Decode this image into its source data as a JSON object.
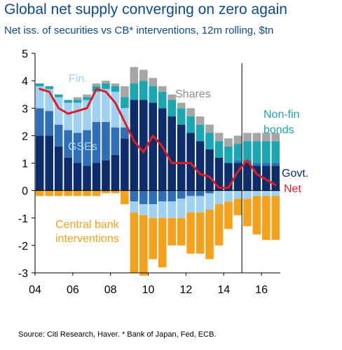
{
  "header": {
    "title": "Global net supply converging on zero again",
    "subtitle": "Net iss. of securities vs CB* interventions, 12m rolling, $tn"
  },
  "footer": {
    "source": "Source: Citi Research, Haver. * Bank of Japan, Fed, ECB."
  },
  "colors": {
    "govt": "#0c2c6b",
    "gses": "#2e6fb8",
    "fin": "#9fd2f2",
    "nonfin": "#1aa6b2",
    "shares": "#a6a6a6",
    "cb": "#f5a11a",
    "net": "#e01c24",
    "title": "#0b4a8c"
  },
  "chart_data": {
    "type": "bar",
    "stacked": true,
    "categories": [
      "04",
      "04.5",
      "05",
      "05.5",
      "06",
      "06.5",
      "07",
      "07.5",
      "08",
      "08.5",
      "09",
      "09.5",
      "10",
      "10.5",
      "11",
      "11.5",
      "12",
      "12.5",
      "13",
      "13.5",
      "14",
      "14.5",
      "15",
      "15.5",
      "16",
      "16.5"
    ],
    "ylim": [
      -3,
      5
    ],
    "x_ticks": [
      "04",
      "06",
      "08",
      "10",
      "12",
      "14",
      "16"
    ],
    "y_ticks": [
      -3,
      -2,
      -1,
      0,
      1,
      2,
      3,
      4,
      5
    ],
    "series": [
      {
        "name": "Govt.",
        "values": [
          2.0,
          2.0,
          1.6,
          1.2,
          1.0,
          0.9,
          1.0,
          1.1,
          1.3,
          1.9,
          3.3,
          3.3,
          3.2,
          3.0,
          2.7,
          2.4,
          2.1,
          1.8,
          1.5,
          1.2,
          1.0,
          1.0,
          1.0,
          0.9,
          0.9,
          0.9
        ]
      },
      {
        "name": "GSEs",
        "values": [
          1.0,
          0.9,
          0.8,
          1.0,
          1.1,
          1.3,
          1.5,
          1.4,
          1.0,
          0.4,
          -0.4,
          -0.5,
          -0.5,
          -0.4,
          -0.4,
          -0.3,
          -0.2,
          -0.2,
          -0.1,
          0.0,
          0.0,
          0.1,
          0.1,
          0.1,
          0.1,
          0.1
        ]
      },
      {
        "name": "Fin.",
        "values": [
          0.8,
          0.8,
          1.0,
          1.0,
          1.1,
          1.1,
          1.1,
          1.2,
          1.3,
          0.7,
          -0.4,
          -0.4,
          -0.5,
          -0.6,
          -0.6,
          -0.7,
          -0.6,
          -0.6,
          -0.6,
          -0.5,
          -0.4,
          -0.3,
          -0.3,
          -0.2,
          -0.2,
          -0.2
        ]
      },
      {
        "name": "Non-fin bonds",
        "values": [
          0.1,
          0.1,
          0.1,
          0.1,
          0.1,
          0.1,
          0.2,
          0.2,
          0.2,
          0.4,
          0.6,
          0.7,
          0.6,
          0.6,
          0.6,
          0.6,
          0.6,
          0.6,
          0.6,
          0.6,
          0.6,
          0.6,
          0.7,
          0.8,
          0.8,
          0.8
        ]
      },
      {
        "name": "Shares",
        "values": [
          0.0,
          0.0,
          0.0,
          0.0,
          0.1,
          0.1,
          0.1,
          0.1,
          0.1,
          0.4,
          0.6,
          0.4,
          0.3,
          0.2,
          0.2,
          0.2,
          0.3,
          0.3,
          0.3,
          0.3,
          0.3,
          0.3,
          0.3,
          0.3,
          0.3,
          0.3
        ]
      },
      {
        "name": "Central bank interventions",
        "values": [
          -0.2,
          -0.2,
          -0.2,
          -0.2,
          -0.2,
          -0.2,
          -0.2,
          -0.1,
          -0.1,
          -0.5,
          -2.2,
          -2.2,
          -1.5,
          -1.8,
          -1.0,
          -1.0,
          -1.5,
          -1.5,
          -1.8,
          -1.5,
          -1.0,
          -0.6,
          -1.0,
          -1.4,
          -1.6,
          -1.6
        ]
      }
    ],
    "line": {
      "name": "Net",
      "values": [
        3.7,
        3.6,
        3.0,
        2.8,
        2.9,
        3.0,
        3.7,
        3.6,
        3.2,
        2.5,
        1.8,
        1.4,
        2.0,
        1.6,
        1.0,
        1.0,
        1.0,
        0.6,
        0.5,
        0.1,
        0.1,
        0.7,
        1.1,
        0.6,
        0.4,
        0.2
      ]
    },
    "vline_at": "15",
    "annotations": [
      {
        "text": "Fin.",
        "series": "Fin."
      },
      {
        "text": "Shares",
        "series": "Shares"
      },
      {
        "text": "Non-fin",
        "series": "Non-fin bonds"
      },
      {
        "text": "bonds",
        "series": "Non-fin bonds"
      },
      {
        "text": "GSEs",
        "series": "GSEs"
      },
      {
        "text": "Govt.",
        "series": "Govt."
      },
      {
        "text": "Net",
        "series": "Net"
      },
      {
        "text": "Central bank",
        "series": "Central bank interventions"
      },
      {
        "text": "interventions",
        "series": "Central bank interventions"
      }
    ]
  }
}
